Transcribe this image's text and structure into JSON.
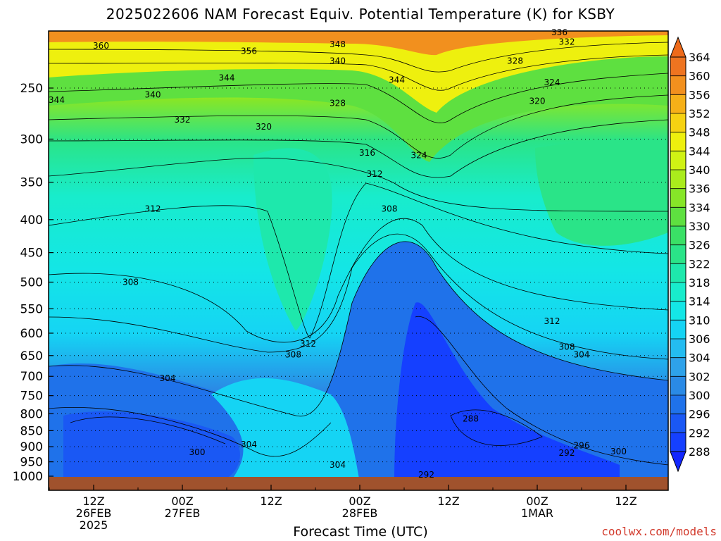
{
  "chart_data": {
    "type": "heatmap",
    "title": "2025022606 NAM Forecast Equiv. Potential Temperature (K) for KSBY",
    "xlabel": "Forecast Time (UTC)",
    "ylabel": "",
    "y_scale": "log",
    "y_reversed": true,
    "yticks": [
      250,
      300,
      350,
      400,
      450,
      500,
      550,
      600,
      650,
      700,
      750,
      800,
      850,
      900,
      950,
      1000
    ],
    "ylim": [
      1000,
      200
    ],
    "xticks": [
      {
        "time": "2025-02-26 12Z",
        "label": [
          "12Z",
          "26FEB",
          "2025"
        ]
      },
      {
        "time": "2025-02-27 00Z",
        "label": [
          "00Z",
          "27FEB"
        ]
      },
      {
        "time": "2025-02-27 12Z",
        "label": [
          "12Z"
        ]
      },
      {
        "time": "2025-02-28 00Z",
        "label": [
          "00Z",
          "28FEB"
        ]
      },
      {
        "time": "2025-02-28 12Z",
        "label": [
          "12Z"
        ]
      },
      {
        "time": "2025-03-01 00Z",
        "label": [
          "00Z",
          "1MAR"
        ]
      },
      {
        "time": "2025-03-01 12Z",
        "label": [
          "12Z"
        ]
      }
    ],
    "xlim": [
      "2025-02-26 06Z",
      "2025-03-01 18Z"
    ],
    "grid": "dotted horizontal lines at pressure ticks",
    "colorbar": {
      "levels": [
        288,
        292,
        296,
        300,
        302,
        304,
        306,
        310,
        314,
        318,
        322,
        326,
        330,
        334,
        336,
        340,
        344,
        348,
        352,
        356,
        360,
        364
      ],
      "colors": [
        "#1540ff",
        "#1a58f4",
        "#1f72ea",
        "#2a8ae6",
        "#2ea2ea",
        "#24bcf0",
        "#15d4f4",
        "#14e6e6",
        "#18eccc",
        "#1ee8ac",
        "#2ae488",
        "#3ae066",
        "#5ee040",
        "#86e628",
        "#aaec1c",
        "#d0f214",
        "#eef00e",
        "#f6d212",
        "#f6b018",
        "#f2901e",
        "#ee7420"
      ],
      "extends": "both"
    },
    "contour_labels": [
      {
        "value": 360,
        "time": "2025-02-26 13Z",
        "p": 215
      },
      {
        "value": 356,
        "time": "2025-02-27 09Z",
        "p": 219
      },
      {
        "value": 348,
        "time": "2025-02-27 21Z",
        "p": 214
      },
      {
        "value": 340,
        "time": "2025-02-27 21Z",
        "p": 227
      },
      {
        "value": 344,
        "time": "2025-02-26 07Z",
        "p": 261
      },
      {
        "value": 340,
        "time": "2025-02-26 20Z",
        "p": 256
      },
      {
        "value": 344,
        "time": "2025-02-27 06Z",
        "p": 241
      },
      {
        "value": 332,
        "time": "2025-02-27 00Z",
        "p": 280
      },
      {
        "value": 328,
        "time": "2025-02-27 21Z",
        "p": 264
      },
      {
        "value": 320,
        "time": "2025-02-27 11Z",
        "p": 287
      },
      {
        "value": 344,
        "time": "2025-02-28 05Z",
        "p": 243
      },
      {
        "value": 336,
        "time": "2025-03-01 03Z",
        "p": 205
      },
      {
        "value": 332,
        "time": "2025-03-01 04Z",
        "p": 212
      },
      {
        "value": 328,
        "time": "2025-03-00 21Z",
        "p": 227
      },
      {
        "value": 324,
        "time": "2025-03-01 02Z",
        "p": 245
      },
      {
        "value": 320,
        "time": "2025-03-01 00Z",
        "p": 262
      },
      {
        "value": 316,
        "time": "2025-02-28 01Z",
        "p": 315
      },
      {
        "value": 324,
        "time": "2025-02-28 08Z",
        "p": 318
      },
      {
        "value": 312,
        "time": "2025-02-28 02Z",
        "p": 340
      },
      {
        "value": 308,
        "time": "2025-02-28 04Z",
        "p": 385
      },
      {
        "value": 312,
        "time": "2025-02-26 20Z",
        "p": 385
      },
      {
        "value": 308,
        "time": "2025-02-26 17Z",
        "p": 500
      },
      {
        "value": 312,
        "time": "2025-03-01 02Z",
        "p": 575
      },
      {
        "value": 312,
        "time": "2025-02-27 17Z",
        "p": 623
      },
      {
        "value": 308,
        "time": "2025-02-27 15Z",
        "p": 648
      },
      {
        "value": 308,
        "time": "2025-03-01 04Z",
        "p": 630
      },
      {
        "value": 304,
        "time": "2025-03-01 06Z",
        "p": 648
      },
      {
        "value": 304,
        "time": "2025-02-26 22Z",
        "p": 705
      },
      {
        "value": 288,
        "time": "2025-02-28 15Z",
        "p": 815
      },
      {
        "value": 304,
        "time": "2025-02-27 09Z",
        "p": 893
      },
      {
        "value": 300,
        "time": "2025-02-27 02Z",
        "p": 918
      },
      {
        "value": 296,
        "time": "2025-03-01 06Z",
        "p": 896
      },
      {
        "value": 292,
        "time": "2025-03-01 04Z",
        "p": 920
      },
      {
        "value": 300,
        "time": "2025-03-01 11Z",
        "p": 916
      },
      {
        "value": 304,
        "time": "2025-02-27 21Z",
        "p": 960
      },
      {
        "value": 292,
        "time": "2025-02-28 09Z",
        "p": 995
      }
    ]
  },
  "credit": "coolwx.com/models"
}
